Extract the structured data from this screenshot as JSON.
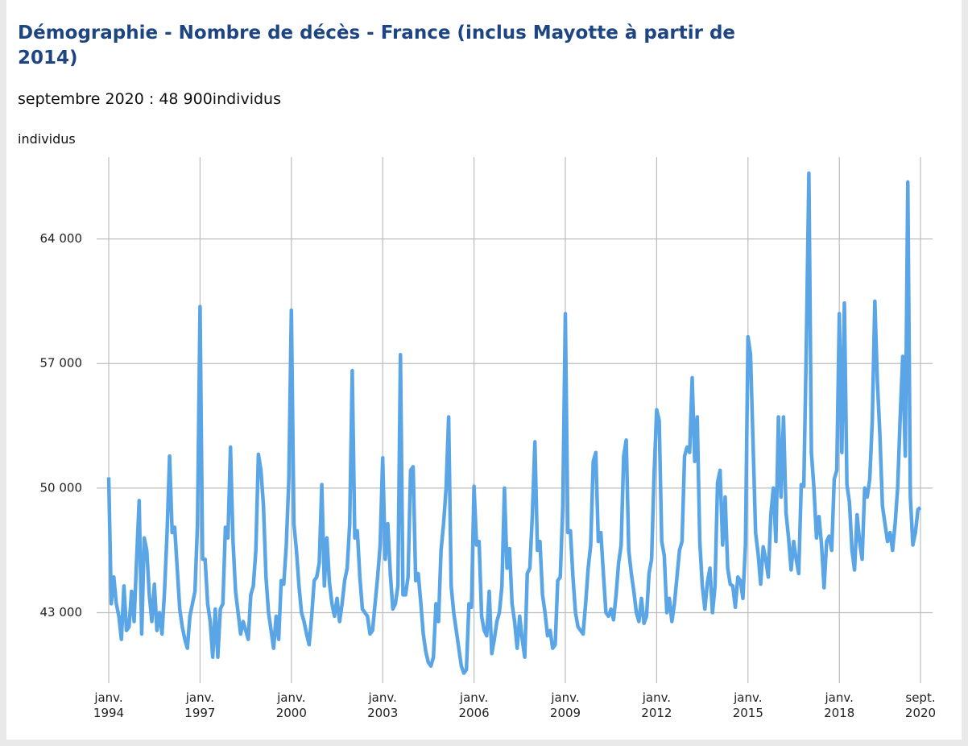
{
  "chart_data": {
    "type": "line",
    "title": "Démographie - Nombre de décès - France (inclus Mayotte à partir de 2014)",
    "subtitle": "septembre 2020 : 48 900individus",
    "y_label": "individus",
    "x": [
      "1994-01",
      "1994-02",
      "1994-03",
      "1994-04",
      "1994-05",
      "1994-06",
      "1994-07",
      "1994-08",
      "1994-09",
      "1994-10",
      "1994-11",
      "1994-12",
      "1995-01",
      "1995-02",
      "1995-03",
      "1995-04",
      "1995-05",
      "1995-06",
      "1995-07",
      "1995-08",
      "1995-09",
      "1995-10",
      "1995-11",
      "1995-12",
      "1996-01",
      "1996-02",
      "1996-03",
      "1996-04",
      "1996-05",
      "1996-06",
      "1996-07",
      "1996-08",
      "1996-09",
      "1996-10",
      "1996-11",
      "1996-12",
      "1997-01",
      "1997-02",
      "1997-03",
      "1997-04",
      "1997-05",
      "1997-06",
      "1997-07",
      "1997-08",
      "1997-09",
      "1997-10",
      "1997-11",
      "1997-12",
      "1998-01",
      "1998-02",
      "1998-03",
      "1998-04",
      "1998-05",
      "1998-06",
      "1998-07",
      "1998-08",
      "1998-09",
      "1998-10",
      "1998-11",
      "1998-12",
      "1999-01",
      "1999-02",
      "1999-03",
      "1999-04",
      "1999-05",
      "1999-06",
      "1999-07",
      "1999-08",
      "1999-09",
      "1999-10",
      "1999-11",
      "1999-12",
      "2000-01",
      "2000-02",
      "2000-03",
      "2000-04",
      "2000-05",
      "2000-06",
      "2000-07",
      "2000-08",
      "2000-09",
      "2000-10",
      "2000-11",
      "2000-12",
      "2001-01",
      "2001-02",
      "2001-03",
      "2001-04",
      "2001-05",
      "2001-06",
      "2001-07",
      "2001-08",
      "2001-09",
      "2001-10",
      "2001-11",
      "2001-12",
      "2002-01",
      "2002-02",
      "2002-03",
      "2002-04",
      "2002-05",
      "2002-06",
      "2002-07",
      "2002-08",
      "2002-09",
      "2002-10",
      "2002-11",
      "2002-12",
      "2003-01",
      "2003-02",
      "2003-03",
      "2003-04",
      "2003-05",
      "2003-06",
      "2003-07",
      "2003-08",
      "2003-09",
      "2003-10",
      "2003-11",
      "2003-12",
      "2004-01",
      "2004-02",
      "2004-03",
      "2004-04",
      "2004-05",
      "2004-06",
      "2004-07",
      "2004-08",
      "2004-09",
      "2004-10",
      "2004-11",
      "2004-12",
      "2005-01",
      "2005-02",
      "2005-03",
      "2005-04",
      "2005-05",
      "2005-06",
      "2005-07",
      "2005-08",
      "2005-09",
      "2005-10",
      "2005-11",
      "2005-12",
      "2006-01",
      "2006-02",
      "2006-03",
      "2006-04",
      "2006-05",
      "2006-06",
      "2006-07",
      "2006-08",
      "2006-09",
      "2006-10",
      "2006-11",
      "2006-12",
      "2007-01",
      "2007-02",
      "2007-03",
      "2007-04",
      "2007-05",
      "2007-06",
      "2007-07",
      "2007-08",
      "2007-09",
      "2007-10",
      "2007-11",
      "2007-12",
      "2008-01",
      "2008-02",
      "2008-03",
      "2008-04",
      "2008-05",
      "2008-06",
      "2008-07",
      "2008-08",
      "2008-09",
      "2008-10",
      "2008-11",
      "2008-12",
      "2009-01",
      "2009-02",
      "2009-03",
      "2009-04",
      "2009-05",
      "2009-06",
      "2009-07",
      "2009-08",
      "2009-09",
      "2009-10",
      "2009-11",
      "2009-12",
      "2010-01",
      "2010-02",
      "2010-03",
      "2010-04",
      "2010-05",
      "2010-06",
      "2010-07",
      "2010-08",
      "2010-09",
      "2010-10",
      "2010-11",
      "2010-12",
      "2011-01",
      "2011-02",
      "2011-03",
      "2011-04",
      "2011-05",
      "2011-06",
      "2011-07",
      "2011-08",
      "2011-09",
      "2011-10",
      "2011-11",
      "2011-12",
      "2012-01",
      "2012-02",
      "2012-03",
      "2012-04",
      "2012-05",
      "2012-06",
      "2012-07",
      "2012-08",
      "2012-09",
      "2012-10",
      "2012-11",
      "2012-12",
      "2013-01",
      "2013-02",
      "2013-03",
      "2013-04",
      "2013-05",
      "2013-06",
      "2013-07",
      "2013-08",
      "2013-09",
      "2013-10",
      "2013-11",
      "2013-12",
      "2014-01",
      "2014-02",
      "2014-03",
      "2014-04",
      "2014-05",
      "2014-06",
      "2014-07",
      "2014-08",
      "2014-09",
      "2014-10",
      "2014-11",
      "2014-12",
      "2015-01",
      "2015-02",
      "2015-03",
      "2015-04",
      "2015-05",
      "2015-06",
      "2015-07",
      "2015-08",
      "2015-09",
      "2015-10",
      "2015-11",
      "2015-12",
      "2016-01",
      "2016-02",
      "2016-03",
      "2016-04",
      "2016-05",
      "2016-06",
      "2016-07",
      "2016-08",
      "2016-09",
      "2016-10",
      "2016-11",
      "2016-12",
      "2017-01",
      "2017-02",
      "2017-03",
      "2017-04",
      "2017-05",
      "2017-06",
      "2017-07",
      "2017-08",
      "2017-09",
      "2017-10",
      "2017-11",
      "2017-12",
      "2018-01",
      "2018-02",
      "2018-03",
      "2018-04",
      "2018-05",
      "2018-06",
      "2018-07",
      "2018-08",
      "2018-09",
      "2018-10",
      "2018-11",
      "2018-12",
      "2019-01",
      "2019-02",
      "2019-03",
      "2019-04",
      "2019-05",
      "2019-06",
      "2019-07",
      "2019-08",
      "2019-09",
      "2019-10",
      "2019-11",
      "2019-12",
      "2020-01",
      "2020-02",
      "2020-03",
      "2020-04",
      "2020-05",
      "2020-06",
      "2020-07",
      "2020-08",
      "2020-09"
    ],
    "series": [
      {
        "color": "#5aa5e6",
        "values": [
          50600,
          43500,
          45000,
          43500,
          42800,
          41500,
          44500,
          42000,
          42200,
          44200,
          42500,
          46000,
          49300,
          41800,
          47200,
          46500,
          44000,
          42500,
          44600,
          42000,
          43000,
          41800,
          44200,
          47500,
          51800,
          47500,
          47800,
          45500,
          43200,
          42200,
          41500,
          41000,
          42800,
          43500,
          44200,
          48000,
          60200,
          46000,
          46000,
          43500,
          42500,
          40500,
          43200,
          40500,
          43200,
          43500,
          47800,
          47200,
          52300,
          47000,
          44200,
          43000,
          41800,
          42500,
          42000,
          41500,
          44000,
          44500,
          46500,
          51900,
          51000,
          49000,
          45000,
          43000,
          42000,
          41000,
          42800,
          41500,
          44800,
          44600,
          46800,
          50500,
          60000,
          48000,
          46500,
          44500,
          43000,
          42500,
          41800,
          41200,
          42800,
          44800,
          45000,
          45800,
          50200,
          44500,
          47200,
          44700,
          43500,
          42800,
          43800,
          42500,
          43500,
          44800,
          45500,
          48000,
          56600,
          47200,
          47600,
          45000,
          43200,
          43000,
          42800,
          41800,
          42000,
          43500,
          45000,
          46800,
          51700,
          46000,
          48000,
          45200,
          43200,
          43500,
          44500,
          57500,
          44000,
          44000,
          45000,
          51000,
          51200,
          44800,
          45200,
          43600,
          41800,
          40800,
          40200,
          40000,
          40500,
          43500,
          42500,
          46500,
          48000,
          50000,
          54000,
          44500,
          43000,
          42000,
          41000,
          40000,
          39600,
          39800,
          43500,
          43300,
          50100,
          46800,
          47000,
          42800,
          42000,
          41700,
          44200,
          40700,
          41500,
          42500,
          43000,
          44500,
          50000,
          45500,
          46600,
          43500,
          42500,
          41000,
          42800,
          41500,
          40500,
          45200,
          45500,
          48500,
          52600,
          46500,
          47000,
          44000,
          43000,
          41700,
          42000,
          41000,
          41200,
          44800,
          45000,
          49000,
          59800,
          47500,
          47600,
          45000,
          43000,
          42200,
          42000,
          41800,
          43500,
          45500,
          46800,
          51500,
          52000,
          47000,
          47500,
          45200,
          43000,
          42800,
          43200,
          42600,
          44000,
          45800,
          46800,
          51800,
          52700,
          46500,
          45200,
          44200,
          43000,
          42500,
          43800,
          42400,
          42800,
          45200,
          46000,
          50800,
          54400,
          53800,
          47000,
          46200,
          43000,
          43800,
          42500,
          43500,
          45000,
          46500,
          47000,
          51800,
          52300,
          52000,
          56200,
          51500,
          54000,
          47000,
          44500,
          43200,
          44700,
          45500,
          43000,
          44500,
          50300,
          51000,
          46800,
          49500,
          45500,
          44600,
          44500,
          43300,
          45000,
          44800,
          43800,
          46800,
          58500,
          57500,
          52500,
          47500,
          46300,
          44600,
          46700,
          46000,
          45000,
          48500,
          50000,
          47000,
          54000,
          49500,
          54000,
          48600,
          47200,
          45400,
          47000,
          46000,
          45200,
          50200,
          50100,
          58000,
          67700,
          52000,
          50000,
          47200,
          48400,
          46800,
          44400,
          47000,
          47300,
          46500,
          50500,
          51000,
          59800,
          52000,
          60400,
          50200,
          49200,
          46500,
          45400,
          48500,
          47000,
          46000,
          50000,
          49500,
          50500,
          53800,
          60500,
          56000,
          53000,
          49000,
          48000,
          47000,
          47500,
          46500,
          48000,
          50000,
          54000,
          57400,
          51800,
          67200,
          49500,
          46800,
          47500,
          48800,
          48900
        ]
      }
    ],
    "ylim": [
      39400,
      68600
    ],
    "yticks": [
      {
        "value": 43000,
        "label": "43 000"
      },
      {
        "value": 50000,
        "label": "50 000"
      },
      {
        "value": 57000,
        "label": "57 000"
      },
      {
        "value": 64000,
        "label": "64 000"
      }
    ],
    "xticks": [
      {
        "value": "1994-01",
        "label": "janv. 1994"
      },
      {
        "value": "1997-01",
        "label": "janv. 1997"
      },
      {
        "value": "2000-01",
        "label": "janv. 2000"
      },
      {
        "value": "2003-01",
        "label": "janv. 2003"
      },
      {
        "value": "2006-01",
        "label": "janv. 2006"
      },
      {
        "value": "2009-01",
        "label": "janv. 2009"
      },
      {
        "value": "2012-01",
        "label": "janv. 2012"
      },
      {
        "value": "2015-01",
        "label": "janv. 2015"
      },
      {
        "value": "2018-01",
        "label": "janv. 2018"
      },
      {
        "value": "2020-09",
        "label": "sept. 2020"
      }
    ],
    "grid": true
  }
}
